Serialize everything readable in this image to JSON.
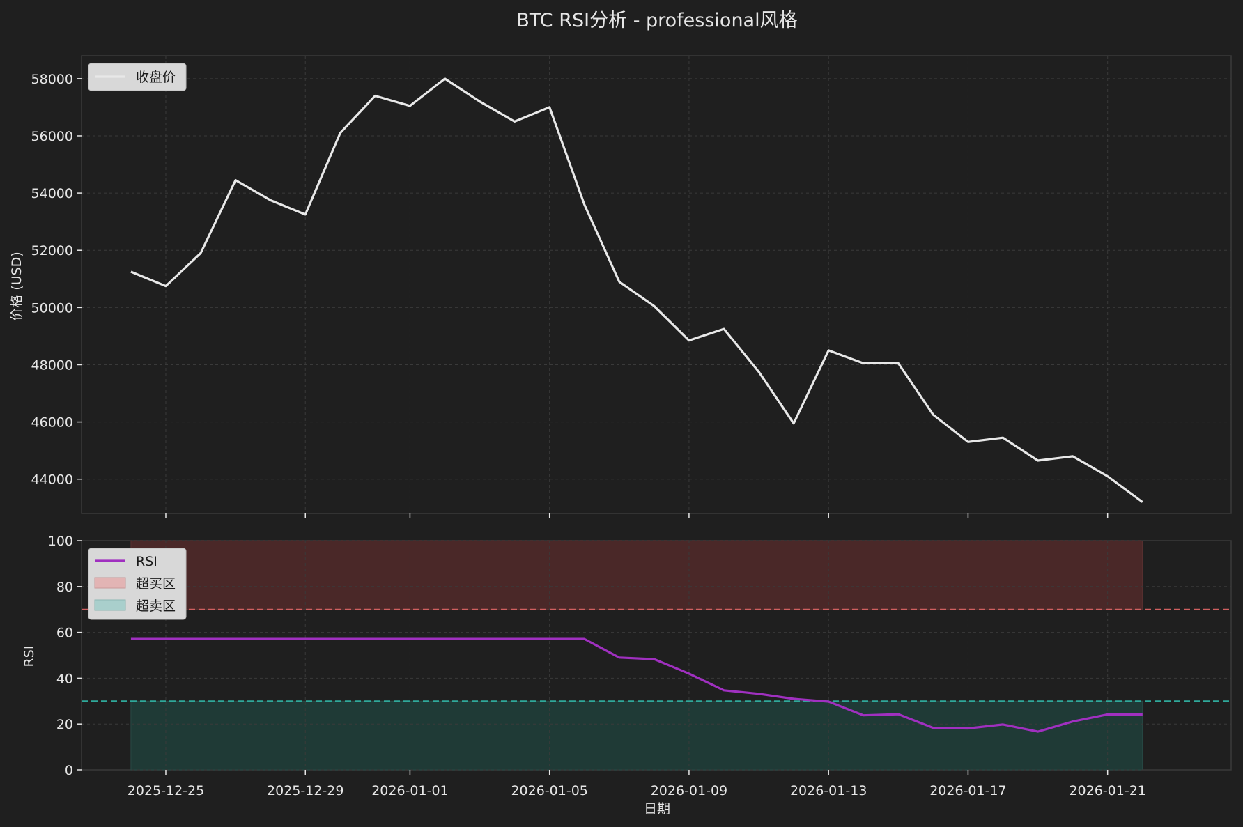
{
  "title": "BTC RSI分析 - professional风格",
  "colors": {
    "background": "#1f1f1f",
    "grid": "#3a3a3a",
    "text": "#e6e6e6",
    "price_line": "#e8e8e8",
    "rsi_line": "#a030c0",
    "overbought_fill": "#4a2828",
    "overbought_line": "#d06060",
    "oversold_fill": "#1f3a36",
    "oversold_line": "#2fa89a",
    "legend_bg": "#d8d8d8"
  },
  "chart_data": [
    {
      "type": "line",
      "panel": "price",
      "ylabel": "价格 (USD)",
      "ylim": [
        42800,
        58800
      ],
      "yticks": [
        44000,
        46000,
        48000,
        50000,
        52000,
        54000,
        56000,
        58000
      ],
      "grid": true,
      "legend_position": "top-left",
      "series": [
        {
          "name": "收盘价",
          "x": [
            "2025-12-24",
            "2025-12-25",
            "2025-12-26",
            "2025-12-27",
            "2025-12-28",
            "2025-12-29",
            "2025-12-30",
            "2025-12-31",
            "2026-01-01",
            "2026-01-02",
            "2026-01-03",
            "2026-01-04",
            "2026-01-05",
            "2026-01-06",
            "2026-01-07",
            "2026-01-08",
            "2026-01-09",
            "2026-01-10",
            "2026-01-11",
            "2026-01-12",
            "2026-01-13",
            "2026-01-14",
            "2026-01-15",
            "2026-01-16",
            "2026-01-17",
            "2026-01-18",
            "2026-01-19",
            "2026-01-20",
            "2026-01-21",
            "2026-01-22"
          ],
          "values": [
            51250,
            50750,
            51900,
            54450,
            53750,
            53250,
            56100,
            57400,
            57050,
            58000,
            57200,
            56500,
            57000,
            53600,
            50900,
            50050,
            48850,
            49250,
            47750,
            45950,
            48500,
            48050,
            48050,
            46250,
            45300,
            45450,
            44650,
            44800,
            44100,
            43200
          ]
        }
      ]
    },
    {
      "type": "line",
      "panel": "rsi",
      "xlabel": "日期",
      "ylabel": "RSI",
      "ylim": [
        0,
        100
      ],
      "yticks": [
        0,
        20,
        40,
        60,
        80,
        100
      ],
      "xticks": [
        "2025-12-25",
        "2025-12-29",
        "2026-01-01",
        "2026-01-05",
        "2026-01-09",
        "2026-01-13",
        "2026-01-17",
        "2026-01-21"
      ],
      "xlim": [
        "2025-12-22 14:00",
        "2026-01-24 13:00"
      ],
      "grid": true,
      "legend_position": "top-left",
      "series": [
        {
          "name": "RSI",
          "x": [
            "2025-12-24",
            "2025-12-25",
            "2025-12-26",
            "2025-12-27",
            "2025-12-28",
            "2025-12-29",
            "2025-12-30",
            "2025-12-31",
            "2026-01-01",
            "2026-01-02",
            "2026-01-03",
            "2026-01-04",
            "2026-01-05",
            "2026-01-06",
            "2026-01-07",
            "2026-01-08",
            "2026-01-09",
            "2026-01-10",
            "2026-01-11",
            "2026-01-12",
            "2026-01-13",
            "2026-01-14",
            "2026-01-15",
            "2026-01-16",
            "2026-01-17",
            "2026-01-18",
            "2026-01-19",
            "2026-01-20",
            "2026-01-21",
            "2026-01-22"
          ],
          "values": [
            57.1,
            57.1,
            57.1,
            57.1,
            57.1,
            57.1,
            57.1,
            57.1,
            57.1,
            57.1,
            57.1,
            57.1,
            57.1,
            57.1,
            49.0,
            48.3,
            42.0,
            34.7,
            33.2,
            31.0,
            29.8,
            23.8,
            24.3,
            18.3,
            18.1,
            19.8,
            16.7,
            21.1,
            24.2,
            24.2
          ]
        }
      ],
      "bands": [
        {
          "name": "超买区",
          "from": 70,
          "to": 100
        },
        {
          "name": "超卖区",
          "from": 0,
          "to": 30
        }
      ],
      "reference_lines": [
        70,
        30
      ]
    }
  ]
}
